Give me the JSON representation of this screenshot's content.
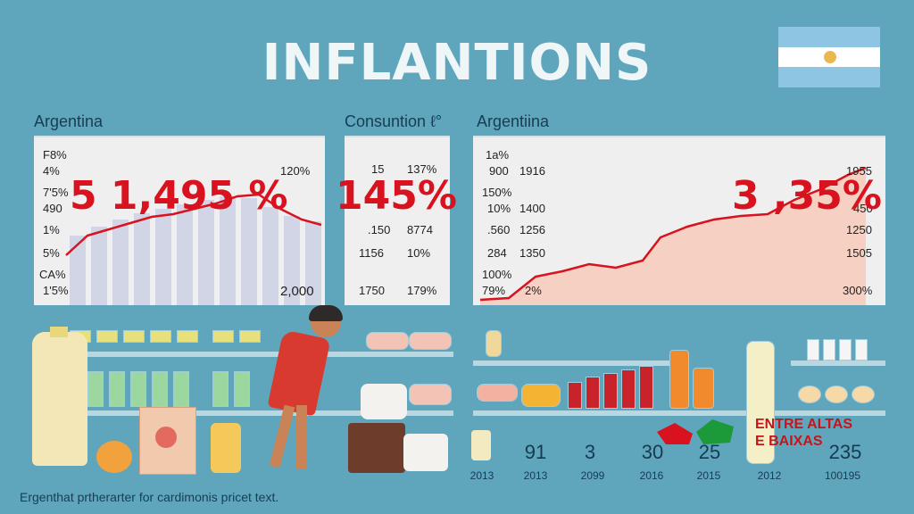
{
  "title": "INFLANTIONS",
  "panels": [
    {
      "label": "Argentina",
      "big": "5 1,495 %",
      "left_col": [
        "F8%",
        "4%",
        "7'5%",
        "490",
        "1%",
        "5%",
        "CA%",
        "1'5%"
      ],
      "right_col": [
        "120%",
        "",
        "2,000"
      ]
    },
    {
      "label": "Consuntion ℓ°",
      "big": "145%",
      "col1": [
        "15",
        ".150",
        "1156",
        "1750"
      ],
      "col2": [
        "137%",
        "8774",
        "10%",
        "179%"
      ]
    },
    {
      "label": "Argentiina",
      "big": "3 ,35%",
      "left_col": [
        "1a%",
        "900",
        "150%",
        "10%",
        ".560",
        "284",
        "100%",
        "79%"
      ],
      "mid_col": [
        "1916",
        "1400",
        "1256",
        "1350",
        "2%"
      ],
      "right_col": [
        "1955",
        "450",
        "1250",
        "1505",
        "300%"
      ]
    }
  ],
  "bottom_numbers": [
    {
      "value": "",
      "year": "2013"
    },
    {
      "value": "91",
      "year": "2013"
    },
    {
      "value": "3",
      "year": "2099"
    },
    {
      "value": "30",
      "year": "2016"
    },
    {
      "value": "25",
      "year": "2015"
    },
    {
      "value": "",
      "year": "2012"
    },
    {
      "value": "235",
      "year": "100195"
    }
  ],
  "brand": {
    "line1": "ENTRE ALTAS",
    "line2": "E BAIXAS"
  },
  "caption": "Ergenthat prtherarter for cardimonis pricet text.",
  "colors": {
    "background": "#5fa6bd",
    "accent": "#d8121f",
    "panel": "#efefef"
  }
}
